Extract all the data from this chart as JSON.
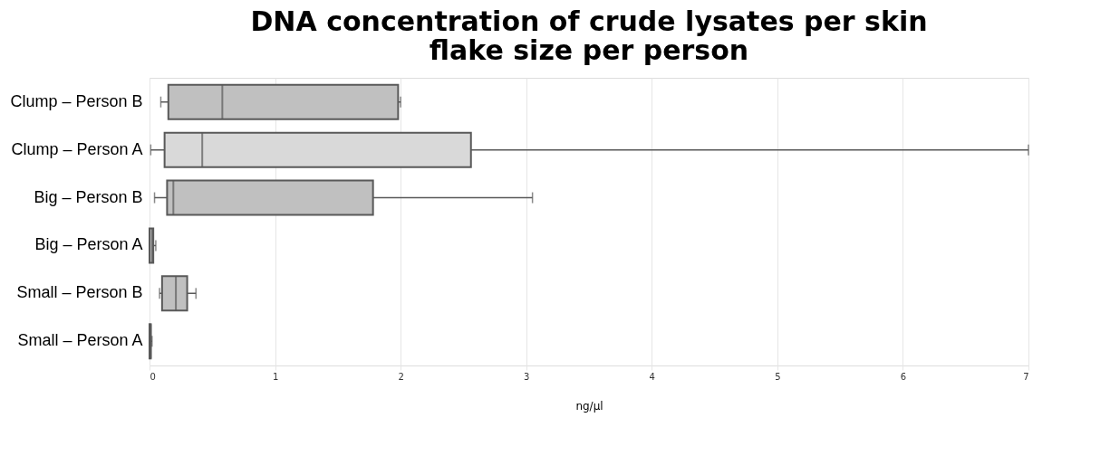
{
  "chart_data": {
    "type": "box",
    "orientation": "horizontal",
    "title": [
      "DNA concentration of crude lysates per skin",
      "flake size per person"
    ],
    "xlabel": "ng/µl",
    "categories": [
      "Clump – Person B",
      "Clump – Person A",
      "Big – Person B",
      "Big – Person A",
      "Small – Person B",
      "Small – Person A"
    ],
    "boxes": [
      {
        "low": 0.09,
        "q1": 0.15,
        "median": 0.58,
        "q3": 1.98,
        "high": 2.0
      },
      {
        "low": 0.01,
        "q1": 0.12,
        "median": 0.42,
        "q3": 2.56,
        "high": 7.0
      },
      {
        "low": 0.04,
        "q1": 0.14,
        "median": 0.19,
        "q3": 1.78,
        "high": 3.05
      },
      {
        "low": 0.0,
        "q1": 0.0,
        "median": 0.02,
        "q3": 0.03,
        "high": 0.05
      },
      {
        "low": 0.08,
        "q1": 0.1,
        "median": 0.21,
        "q3": 0.3,
        "high": 0.37
      },
      {
        "low": 0.0,
        "q1": 0.0,
        "median": 0.01,
        "q3": 0.01,
        "high": 0.02
      }
    ],
    "colors": [
      "#c0c0c0",
      "#d9d9d9",
      "#c0c0c0",
      "#c0c0c0",
      "#c0c0c0",
      "#c0c0c0"
    ],
    "xlim": [
      0,
      7
    ],
    "xticks": [
      0,
      1,
      2,
      3,
      4,
      5,
      6,
      7
    ],
    "grid": "x"
  }
}
